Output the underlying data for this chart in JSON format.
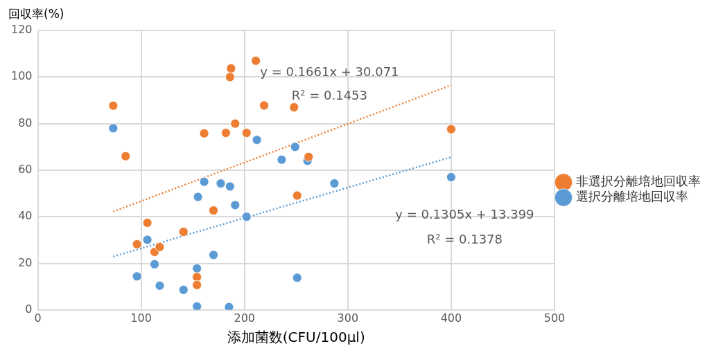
{
  "chart_data": {
    "type": "scatter",
    "xlabel": "添加菌数(CFU/100μl)",
    "ylabel": "回収率(%)",
    "xlim": [
      0,
      500
    ],
    "xticks": [
      0,
      100,
      200,
      300,
      400,
      500
    ],
    "ylim": [
      0,
      120
    ],
    "yticks": [
      0,
      20,
      40,
      60,
      80,
      100,
      120
    ],
    "grid": true,
    "legend": "right",
    "marker": "circle",
    "series": [
      {
        "name": "非選択分離培地回収率",
        "color": "#ed7d31",
        "x": [
          73,
          85,
          106,
          96,
          113,
          118,
          141,
          154,
          154,
          161,
          170,
          182,
          186,
          187,
          191,
          202,
          211,
          219,
          248,
          262,
          251,
          400
        ],
        "values": [
          87.7,
          66,
          37.4,
          28.2,
          24.9,
          27,
          33.5,
          14.1,
          10.7,
          75.8,
          42.7,
          76,
          100,
          103.7,
          80,
          76,
          107,
          87.8,
          87,
          65.7,
          49.1,
          77.6
        ]
      },
      {
        "name": "選択分離培地回収率",
        "color": "#5b9bd5",
        "x": [
          73,
          96,
          106,
          113,
          118,
          141,
          154,
          154,
          155,
          161,
          170,
          177,
          186,
          185,
          191,
          202,
          212,
          236,
          249,
          251,
          261,
          287,
          400
        ],
        "values": [
          78,
          14.4,
          30.1,
          19.6,
          10.4,
          8.6,
          17.8,
          1.5,
          48.5,
          55,
          23.6,
          54.3,
          53,
          1.2,
          45,
          40,
          73,
          64.5,
          70,
          13.8,
          64,
          54.3,
          57
        ]
      },
      {
        "type": "line",
        "color": "#ed7d31",
        "line_style": "dotted",
        "marker": "none",
        "x": [
          73,
          400
        ],
        "values": [
          42.2,
          96.5
        ]
      },
      {
        "type": "line",
        "color": "#5b9bd5",
        "line_style": "dotted",
        "marker": "none",
        "x": [
          73,
          400
        ],
        "values": [
          22.9,
          65.6
        ]
      }
    ],
    "annotations": [
      "y = 0.1661x + 30.071",
      "R² = 0.1453",
      "y = 0.1305x + 13.399",
      "R² = 0.1378"
    ]
  }
}
